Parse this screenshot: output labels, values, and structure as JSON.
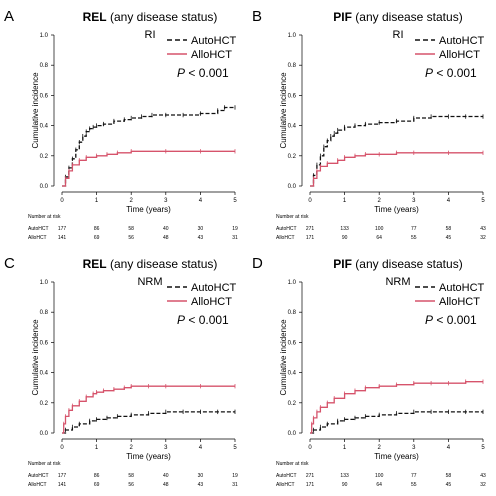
{
  "colors": {
    "auto": "#111111",
    "allo": "#d6536b"
  },
  "risk_header": "Number at risk",
  "panels": [
    {
      "letter": "A",
      "title_bold": "REL",
      "title_rest": " (any disease status)",
      "subtitle": "RI",
      "legend": [
        "AutoHCT",
        "AlloHCT"
      ],
      "pvalue": "< 0.001",
      "pvalue_symbol": "P",
      "ylabel": "Cumulative incidence",
      "xlabel": "Time (years)",
      "risk": [
        {
          "label": "AutoHCT",
          "values": [
            "177",
            "86",
            "58",
            "40",
            "30",
            "19"
          ]
        },
        {
          "label": "AlloHCT",
          "values": [
            "141",
            "69",
            "56",
            "48",
            "43",
            "31"
          ]
        }
      ]
    },
    {
      "letter": "B",
      "title_bold": "PIF",
      "title_rest": " (any disease status)",
      "subtitle": "RI",
      "legend": [
        "AutoHCT",
        "AlloHCT"
      ],
      "pvalue": "< 0.001",
      "pvalue_symbol": "P",
      "ylabel": "Cumulative incidence",
      "xlabel": "Time (years)",
      "risk": [
        {
          "label": "AutoHCT",
          "values": [
            "271",
            "133",
            "100",
            "77",
            "58",
            "43"
          ]
        },
        {
          "label": "AlloHCT",
          "values": [
            "171",
            "90",
            "64",
            "55",
            "45",
            "32"
          ]
        }
      ]
    },
    {
      "letter": "C",
      "title_bold": "REL",
      "title_rest": " (any disease status)",
      "subtitle": "NRM",
      "legend": [
        "AutoHCT",
        "AlloHCT"
      ],
      "pvalue": "< 0.001",
      "pvalue_symbol": "P",
      "ylabel": "Cumulative incidence",
      "xlabel": "Time (years)",
      "risk": [
        {
          "label": "AutoHCT",
          "values": [
            "177",
            "86",
            "58",
            "40",
            "30",
            "19"
          ]
        },
        {
          "label": "AlloHCT",
          "values": [
            "141",
            "69",
            "56",
            "48",
            "43",
            "31"
          ]
        }
      ]
    },
    {
      "letter": "D",
      "title_bold": "PIF",
      "title_rest": " (any disease status)",
      "subtitle": "NRM",
      "legend": [
        "AutoHCT",
        "AlloHCT"
      ],
      "pvalue": "< 0.001",
      "pvalue_symbol": "P",
      "ylabel": "Cumulative incidence",
      "xlabel": "Time (years)",
      "risk": [
        {
          "label": "AutoHCT",
          "values": [
            "271",
            "133",
            "100",
            "77",
            "58",
            "43"
          ]
        },
        {
          "label": "AlloHCT",
          "values": [
            "171",
            "90",
            "64",
            "55",
            "45",
            "32"
          ]
        }
      ]
    }
  ],
  "chart_data": [
    {
      "type": "line",
      "title": "REL (any disease status)",
      "xlabel": "Time (years)",
      "ylabel": "Cumulative incidence",
      "xlim": [
        0,
        5
      ],
      "ylim": [
        0,
        1.0
      ],
      "xticks": [
        "0",
        "1",
        "2",
        "3",
        "4",
        "5"
      ],
      "yticks": [
        "0.0",
        "0.2",
        "0.4",
        "0.6",
        "0.8",
        "1.0"
      ],
      "series": [
        {
          "name": "AutoHCT",
          "style": "dashed",
          "x": [
            0,
            0.1,
            0.2,
            0.3,
            0.4,
            0.5,
            0.6,
            0.7,
            0.8,
            0.9,
            1.0,
            1.2,
            1.5,
            1.8,
            2.0,
            2.3,
            2.6,
            3.0,
            3.5,
            4.0,
            4.5,
            4.7,
            5.0
          ],
          "y": [
            0.0,
            0.06,
            0.12,
            0.18,
            0.24,
            0.29,
            0.33,
            0.36,
            0.38,
            0.39,
            0.4,
            0.41,
            0.43,
            0.44,
            0.45,
            0.46,
            0.47,
            0.47,
            0.47,
            0.48,
            0.5,
            0.52,
            0.52
          ]
        },
        {
          "name": "AlloHCT",
          "style": "solid",
          "x": [
            0,
            0.1,
            0.2,
            0.3,
            0.5,
            0.7,
            1.0,
            1.3,
            1.6,
            2.0,
            3.0,
            4.0,
            5.0
          ],
          "y": [
            0.0,
            0.05,
            0.1,
            0.14,
            0.17,
            0.19,
            0.2,
            0.21,
            0.22,
            0.23,
            0.23,
            0.23,
            0.23
          ]
        }
      ]
    },
    {
      "type": "line",
      "title": "PIF (any disease status)",
      "xlabel": "Time (years)",
      "ylabel": "Cumulative incidence",
      "xlim": [
        0,
        5
      ],
      "ylim": [
        0,
        1.0
      ],
      "xticks": [
        "0",
        "1",
        "2",
        "3",
        "4",
        "5"
      ],
      "yticks": [
        "0.0",
        "0.2",
        "0.4",
        "0.6",
        "0.8",
        "1.0"
      ],
      "series": [
        {
          "name": "AutoHCT",
          "style": "dashed",
          "x": [
            0,
            0.1,
            0.2,
            0.3,
            0.4,
            0.5,
            0.6,
            0.7,
            0.8,
            1.0,
            1.3,
            1.6,
            2.0,
            2.5,
            3.0,
            3.5,
            4.0,
            4.5,
            5.0
          ],
          "y": [
            0.0,
            0.07,
            0.14,
            0.2,
            0.26,
            0.3,
            0.33,
            0.35,
            0.37,
            0.39,
            0.4,
            0.41,
            0.42,
            0.43,
            0.45,
            0.46,
            0.46,
            0.46,
            0.46
          ]
        },
        {
          "name": "AlloHCT",
          "style": "solid",
          "x": [
            0,
            0.1,
            0.2,
            0.3,
            0.5,
            0.8,
            1.0,
            1.3,
            1.6,
            2.0,
            2.5,
            3.0,
            4.0,
            5.0
          ],
          "y": [
            0.0,
            0.05,
            0.1,
            0.13,
            0.15,
            0.17,
            0.19,
            0.2,
            0.21,
            0.21,
            0.22,
            0.22,
            0.22,
            0.22
          ]
        }
      ]
    },
    {
      "type": "line",
      "title": "REL (any disease status)",
      "xlabel": "Time (years)",
      "ylabel": "Cumulative incidence",
      "xlim": [
        0,
        5
      ],
      "ylim": [
        0,
        1.0
      ],
      "xticks": [
        "0",
        "1",
        "2",
        "3",
        "4",
        "5"
      ],
      "yticks": [
        "0.0",
        "0.2",
        "0.4",
        "0.6",
        "0.8",
        "1.0"
      ],
      "series": [
        {
          "name": "AutoHCT",
          "style": "dashed",
          "x": [
            0,
            0.1,
            0.3,
            0.5,
            0.8,
            1.0,
            1.3,
            1.6,
            2.0,
            2.5,
            3.0,
            3.5,
            4.0,
            4.5,
            5.0
          ],
          "y": [
            0.0,
            0.02,
            0.04,
            0.06,
            0.08,
            0.09,
            0.1,
            0.11,
            0.12,
            0.13,
            0.14,
            0.14,
            0.14,
            0.14,
            0.14
          ]
        },
        {
          "name": "AlloHCT",
          "style": "solid",
          "x": [
            0,
            0.05,
            0.1,
            0.2,
            0.3,
            0.5,
            0.7,
            0.9,
            1.0,
            1.2,
            1.5,
            1.8,
            2.0,
            2.5,
            3.0,
            4.0,
            5.0
          ],
          "y": [
            0.0,
            0.06,
            0.11,
            0.15,
            0.18,
            0.21,
            0.24,
            0.26,
            0.27,
            0.28,
            0.29,
            0.3,
            0.31,
            0.31,
            0.31,
            0.31,
            0.31
          ]
        }
      ]
    },
    {
      "type": "line",
      "title": "PIF (any disease status)",
      "xlabel": "Time (years)",
      "ylabel": "Cumulative incidence",
      "xlim": [
        0,
        5
      ],
      "ylim": [
        0,
        1.0
      ],
      "xticks": [
        "0",
        "1",
        "2",
        "3",
        "4",
        "5"
      ],
      "yticks": [
        "0.0",
        "0.2",
        "0.4",
        "0.6",
        "0.8",
        "1.0"
      ],
      "series": [
        {
          "name": "AutoHCT",
          "style": "dashed",
          "x": [
            0,
            0.1,
            0.3,
            0.5,
            0.8,
            1.0,
            1.3,
            1.6,
            2.0,
            2.5,
            3.0,
            3.5,
            4.0,
            4.5,
            5.0
          ],
          "y": [
            0.0,
            0.02,
            0.04,
            0.06,
            0.08,
            0.09,
            0.1,
            0.11,
            0.12,
            0.13,
            0.14,
            0.14,
            0.14,
            0.14,
            0.14
          ]
        },
        {
          "name": "AlloHCT",
          "style": "solid",
          "x": [
            0,
            0.05,
            0.1,
            0.2,
            0.3,
            0.5,
            0.7,
            1.0,
            1.3,
            1.6,
            2.0,
            2.5,
            3.0,
            3.5,
            4.0,
            4.5,
            5.0
          ],
          "y": [
            0.0,
            0.06,
            0.1,
            0.14,
            0.17,
            0.2,
            0.23,
            0.26,
            0.28,
            0.3,
            0.31,
            0.32,
            0.33,
            0.33,
            0.33,
            0.34,
            0.34
          ]
        }
      ]
    }
  ]
}
